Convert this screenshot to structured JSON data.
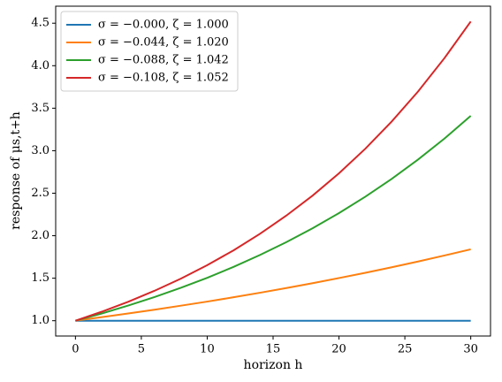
{
  "chart_data": {
    "type": "line",
    "x_label": "horizon h",
    "y_label": "response of μs,t+h",
    "x": [
      0,
      2,
      4,
      6,
      8,
      10,
      12,
      14,
      16,
      18,
      20,
      22,
      24,
      26,
      28,
      30
    ],
    "series": [
      {
        "name": "σ = −0.000, ζ = 1.000",
        "color": "#1f77b4",
        "values": [
          1,
          1,
          1,
          1,
          1,
          1,
          1,
          1,
          1,
          1,
          1,
          1,
          1,
          1,
          1,
          1
        ]
      },
      {
        "name": "σ = −0.044, ζ = 1.020",
        "color": "#ff7f0e",
        "values": [
          1,
          1.042,
          1.085,
          1.13,
          1.177,
          1.225,
          1.276,
          1.329,
          1.384,
          1.442,
          1.502,
          1.564,
          1.629,
          1.696,
          1.767,
          1.84
        ]
      },
      {
        "name": "σ = −0.088, ζ = 1.042",
        "color": "#2ca02c",
        "values": [
          1,
          1.085,
          1.178,
          1.278,
          1.387,
          1.505,
          1.633,
          1.773,
          1.924,
          2.088,
          2.266,
          2.459,
          2.668,
          2.896,
          3.142,
          3.41
        ]
      },
      {
        "name": "σ = −0.108, ζ = 1.052",
        "color": "#d62728",
        "values": [
          1,
          1.106,
          1.223,
          1.352,
          1.495,
          1.653,
          1.828,
          2.022,
          2.236,
          2.472,
          2.734,
          3.023,
          3.343,
          3.696,
          4.088,
          4.52
        ]
      }
    ],
    "xlim": [
      -1.5,
      31.5
    ],
    "ylim": [
      0.82,
      4.7
    ],
    "xticks": [
      0,
      5,
      10,
      15,
      20,
      25,
      30
    ],
    "yticks": [
      {
        "value": 1,
        "label": "1.0"
      },
      {
        "value": 1.5,
        "label": "1.5"
      },
      {
        "value": 2,
        "label": "2.0"
      },
      {
        "value": 2.5,
        "label": "2.5"
      },
      {
        "value": 3,
        "label": "3.0"
      },
      {
        "value": 3.5,
        "label": "3.5"
      },
      {
        "value": 4,
        "label": "4.0"
      },
      {
        "value": 4.5,
        "label": "4.5"
      }
    ],
    "grid": false,
    "legend": "upper left"
  }
}
